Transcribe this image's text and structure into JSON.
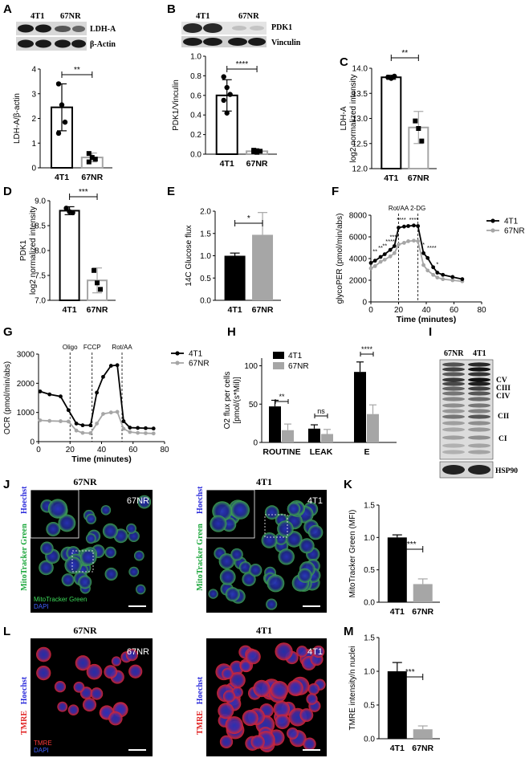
{
  "panels": {
    "A": {
      "letter": "A",
      "blot": {
        "lanes": [
          "4T1",
          "67NR"
        ],
        "bands": [
          "LDH-A",
          "β-Actin"
        ]
      },
      "chart": {
        "type": "bar",
        "categories": [
          "4T1",
          "67NR"
        ],
        "ylabel": "LDH-A/β-actin",
        "ylim": [
          0,
          4
        ],
        "yticks": [
          "0",
          "1",
          "2",
          "3",
          "4"
        ],
        "values": [
          2.45,
          0.42
        ],
        "errors": [
          0.95,
          0.18
        ],
        "points": [
          [
            3.4,
            2.55,
            1.85,
            1.4
          ],
          [
            0.58,
            0.42,
            0.35,
            0.24
          ]
        ],
        "sig": "**"
      }
    },
    "B": {
      "letter": "B",
      "blot": {
        "lanes": [
          "4T1",
          "67NR"
        ],
        "bands": [
          "PDK1",
          "Vinculin"
        ]
      },
      "chart": {
        "type": "bar",
        "categories": [
          "4T1",
          "67NR"
        ],
        "ylabel": "PDK1/Vinculin",
        "ylim": [
          0,
          1.0
        ],
        "yticks": [
          "0.0",
          "0.2",
          "0.4",
          "0.6",
          "0.8",
          "1.0"
        ],
        "values": [
          0.6,
          0.03
        ],
        "errors": [
          0.16,
          0.012
        ],
        "points": [
          [
            0.79,
            0.68,
            0.61,
            0.55,
            0.42
          ],
          [
            0.04,
            0.035,
            0.03,
            0.025,
            0.02
          ]
        ],
        "sig": "****"
      }
    },
    "C": {
      "letter": "C",
      "chart": {
        "type": "bar",
        "categories": [
          "4T1",
          "67NR"
        ],
        "ylabel": [
          "LDH-A",
          "log2 normalized intensity"
        ],
        "ylim": [
          12.0,
          14.0
        ],
        "yticks": [
          "12.0",
          "12.5",
          "13.0",
          "13.5",
          "14.0"
        ],
        "values": [
          13.82,
          12.82
        ],
        "errors": [
          0.04,
          0.32
        ],
        "points": [
          [
            13.82,
            13.8,
            13.84
          ],
          [
            12.95,
            12.8,
            12.55
          ]
        ],
        "sig": "**"
      }
    },
    "D": {
      "letter": "D",
      "chart": {
        "type": "bar",
        "categories": [
          "4T1",
          "67NR"
        ],
        "ylabel": [
          "PDK1",
          "log2 normalized intensity"
        ],
        "ylim": [
          7.0,
          9.0
        ],
        "yticks": [
          "7.0",
          "7.5",
          "8.0",
          "8.5",
          "9.0"
        ],
        "values": [
          8.8,
          7.4
        ],
        "errors": [
          0.08,
          0.25
        ],
        "points": [
          [
            8.85,
            8.78,
            8.76
          ],
          [
            7.6,
            7.35,
            7.22
          ]
        ],
        "sig": "***"
      }
    },
    "E": {
      "letter": "E",
      "chart": {
        "type": "bar",
        "categories": [
          "4T1",
          "67NR"
        ],
        "ylabel": "14C Glucose flux",
        "ylim": [
          0,
          2.0
        ],
        "yticks": [
          "0.0",
          "0.5",
          "1.0",
          "1.5",
          "2.0"
        ],
        "values": [
          1.0,
          1.47
        ],
        "errors": [
          0.06,
          0.5
        ],
        "sig": "*",
        "colors": [
          "#000000",
          "#a6a6a6"
        ]
      }
    },
    "F": {
      "letter": "F",
      "chart": {
        "type": "line",
        "xlabel": "Time (minutes)",
        "ylabel": "glycoPER (pmol/min/abs)",
        "xlim": [
          0,
          80
        ],
        "ylim": [
          0,
          8000
        ],
        "xticks": [
          "0",
          "20",
          "40",
          "60",
          "80"
        ],
        "yticks": [
          "0",
          "2000",
          "4000",
          "6000",
          "8000"
        ],
        "markers": [
          "Rot/AA",
          "2-DG"
        ],
        "marker_x": [
          20,
          34
        ],
        "series": [
          {
            "name": "4T1",
            "color": "#000000",
            "x": [
              0,
              3,
              7,
              10,
              14,
              17,
              20,
              24,
              27,
              31,
              34,
              38,
              41,
              45,
              48,
              52,
              59,
              66
            ],
            "y": [
              3600,
              3800,
              4150,
              4400,
              4800,
              5150,
              6850,
              6950,
              7000,
              7050,
              7000,
              4500,
              4050,
              3200,
              2700,
              2500,
              2300,
              2100
            ]
          },
          {
            "name": "67NR",
            "color": "#a6a6a6",
            "x": [
              0,
              3,
              7,
              10,
              14,
              17,
              20,
              24,
              27,
              31,
              34,
              38,
              41,
              45,
              48,
              52,
              59,
              66
            ],
            "y": [
              3100,
              3300,
              3700,
              3900,
              4200,
              4500,
              5300,
              5450,
              5600,
              5650,
              5600,
              3400,
              2900,
              2500,
              2250,
              2100,
              2000,
              1900
            ]
          }
        ],
        "sig_labels": [
          "**",
          "**",
          "**",
          "****",
          "****",
          "****",
          "****",
          "****",
          "*",
          "*"
        ]
      }
    },
    "G": {
      "letter": "G",
      "chart": {
        "type": "line",
        "xlabel": "Time (minutes)",
        "ylabel": "OCR (pmol/min/abs)",
        "xlim": [
          0,
          80
        ],
        "ylim": [
          0,
          3000
        ],
        "xticks": [
          "0",
          "20",
          "40",
          "60",
          "80"
        ],
        "yticks": [
          "0",
          "1000",
          "2000",
          "3000"
        ],
        "markers": [
          "Oligo",
          "FCCP",
          "Rot/AA"
        ],
        "marker_x": [
          20,
          34,
          53
        ],
        "series": [
          {
            "name": "4T1",
            "color": "#000000",
            "x": [
              1,
              7,
              14,
              19,
              24,
              28,
              33,
              37,
              41,
              46,
              50,
              54,
              58,
              63,
              68,
              73
            ],
            "y": [
              1720,
              1620,
              1550,
              1080,
              620,
              560,
              560,
              1680,
              2220,
              2600,
              2620,
              700,
              480,
              470,
              460,
              450
            ]
          },
          {
            "name": "67NR",
            "color": "#a6a6a6",
            "x": [
              1,
              7,
              14,
              19,
              24,
              28,
              33,
              37,
              41,
              46,
              50,
              54,
              58,
              63,
              68,
              73
            ],
            "y": [
              730,
              710,
              700,
              690,
              380,
              300,
              290,
              620,
              950,
              1000,
              1020,
              440,
              330,
              300,
              290,
              280
            ]
          }
        ]
      }
    },
    "H": {
      "letter": "H",
      "chart": {
        "type": "bar",
        "ylabel": [
          "O2 flux per cells",
          "[pmol/(s*Mil)]"
        ],
        "categories": [
          "ROUTINE",
          "LEAK",
          "E"
        ],
        "ylim": [
          0,
          110
        ],
        "yticks": [
          "0",
          "50",
          "100"
        ],
        "series": [
          {
            "name": "4T1",
            "color": "#000000",
            "values": [
              47,
              18,
              92
            ],
            "errors": [
              8,
              5,
              13
            ]
          },
          {
            "name": "67NR",
            "color": "#a6a6a6",
            "values": [
              16,
              11,
              37
            ],
            "errors": [
              8,
              6,
              12
            ]
          }
        ],
        "sig": [
          "**",
          "ns",
          "****"
        ]
      }
    },
    "I": {
      "letter": "I",
      "blot": {
        "lanes": [
          "67NR",
          "4T1"
        ],
        "bands": [
          "CV",
          "CIII",
          "CIV",
          "CII",
          "CI",
          "HSP90"
        ]
      }
    },
    "J": {
      "letter": "J",
      "images": [
        {
          "title": "67NR",
          "overlay": "67NR",
          "side": "MitoTracker Green",
          "side2": "Hoechst",
          "legend": [
            "MitoTracker Green",
            "DAPI"
          ]
        },
        {
          "title": "4T1",
          "overlay": "4T1",
          "side": "MitoTracker Green",
          "side2": "Hoechst"
        }
      ]
    },
    "K": {
      "letter": "K",
      "chart": {
        "type": "bar",
        "categories": [
          "4T1",
          "67NR"
        ],
        "ylabel": "MitoTracker Green (MFI)",
        "ylim": [
          0,
          1.5
        ],
        "yticks": [
          "0.0",
          "0.5",
          "1.0",
          "1.5"
        ],
        "values": [
          1.0,
          0.28
        ],
        "errors": [
          0.04,
          0.08
        ],
        "sig": "****",
        "colors": [
          "#000000",
          "#a6a6a6"
        ]
      }
    },
    "L": {
      "letter": "L",
      "images": [
        {
          "title": "67NR",
          "overlay": "67NR",
          "side": "TMRE",
          "side2": "Hoechst",
          "legend": [
            "TMRE",
            "DAPI"
          ]
        },
        {
          "title": "4T1",
          "overlay": "4T1",
          "side": "TMRE",
          "side2": "Hoechst"
        }
      ]
    },
    "M": {
      "letter": "M",
      "chart": {
        "type": "bar",
        "categories": [
          "4T1",
          "67NR"
        ],
        "ylabel": "TMRE intensity/n nuclei",
        "ylim": [
          0,
          1.5
        ],
        "yticks": [
          "0.0",
          "0.5",
          "1.0",
          "1.5"
        ],
        "values": [
          1.0,
          0.14
        ],
        "errors": [
          0.13,
          0.05
        ],
        "sig": "***",
        "colors": [
          "#000000",
          "#a6a6a6"
        ]
      }
    }
  },
  "chart_data": [
    {
      "type": "bar",
      "panel": "A",
      "categories": [
        "4T1",
        "67NR"
      ],
      "values": [
        2.45,
        0.42
      ],
      "ylabel": "LDH-A/β-actin",
      "ylim": [
        0,
        4
      ]
    },
    {
      "type": "bar",
      "panel": "B",
      "categories": [
        "4T1",
        "67NR"
      ],
      "values": [
        0.6,
        0.03
      ],
      "ylabel": "PDK1/Vinculin",
      "ylim": [
        0,
        1.0
      ]
    },
    {
      "type": "bar",
      "panel": "C",
      "categories": [
        "4T1",
        "67NR"
      ],
      "values": [
        13.82,
        12.82
      ],
      "ylabel": "LDH-A log2 normalized intensity",
      "ylim": [
        12.0,
        14.0
      ]
    },
    {
      "type": "bar",
      "panel": "D",
      "categories": [
        "4T1",
        "67NR"
      ],
      "values": [
        8.8,
        7.4
      ],
      "ylabel": "PDK1 log2 normalized intensity",
      "ylim": [
        7.0,
        9.0
      ]
    },
    {
      "type": "bar",
      "panel": "E",
      "categories": [
        "4T1",
        "67NR"
      ],
      "values": [
        1.0,
        1.47
      ],
      "ylabel": "14C Glucose flux",
      "ylim": [
        0,
        2.0
      ]
    },
    {
      "type": "line",
      "panel": "F",
      "xlabel": "Time (minutes)",
      "ylabel": "glycoPER (pmol/min/abs)",
      "series": [
        "4T1",
        "67NR"
      ]
    },
    {
      "type": "line",
      "panel": "G",
      "xlabel": "Time (minutes)",
      "ylabel": "OCR (pmol/min/abs)",
      "series": [
        "4T1",
        "67NR"
      ]
    },
    {
      "type": "bar",
      "panel": "H",
      "categories": [
        "ROUTINE",
        "LEAK",
        "E"
      ],
      "series": [
        {
          "name": "4T1",
          "values": [
            47,
            18,
            92
          ]
        },
        {
          "name": "67NR",
          "values": [
            16,
            11,
            37
          ]
        }
      ]
    },
    {
      "type": "bar",
      "panel": "K",
      "categories": [
        "4T1",
        "67NR"
      ],
      "values": [
        1.0,
        0.28
      ],
      "ylabel": "MitoTracker Green (MFI)"
    },
    {
      "type": "bar",
      "panel": "M",
      "categories": [
        "4T1",
        "67NR"
      ],
      "values": [
        1.0,
        0.14
      ],
      "ylabel": "TMRE intensity/n nuclei"
    }
  ]
}
